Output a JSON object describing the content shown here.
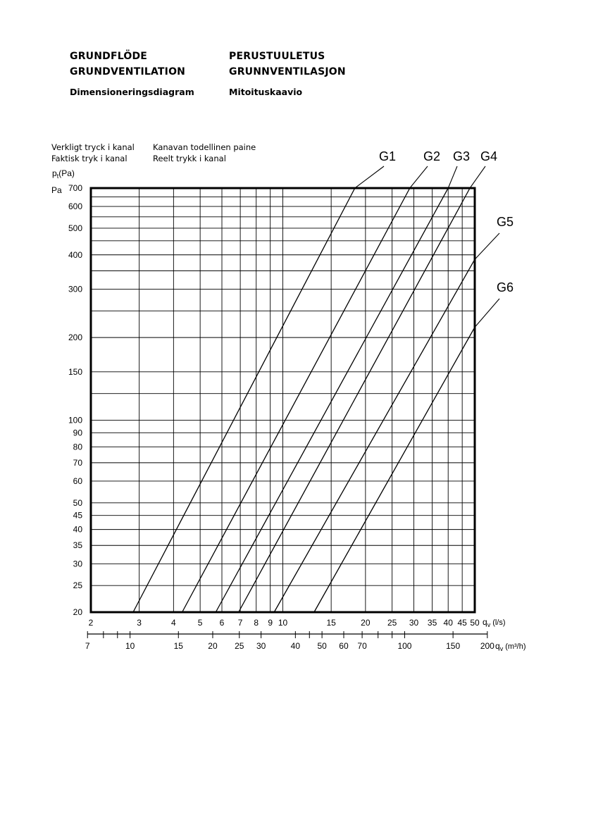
{
  "header": {
    "left_title_1": "GRUNDFLÖDE",
    "left_title_2": "GRUNDVENTILATION",
    "left_subtitle": "Dimensioneringsdiagram",
    "right_title_1": "PERUSTUULETUS",
    "right_title_2": "GRUNNVENTILASJON",
    "right_subtitle": "Mitoituskaavio"
  },
  "axis_notes": {
    "y_desc_sv": "Verkligt tryck i kanal",
    "y_desc_da": "Faktisk tryk i kanal",
    "y_desc_fi": "Kanavan todellinen paine",
    "y_desc_no": "Reelt trykk i kanal",
    "y_symbol": "p",
    "y_symbol_sub": "t",
    "y_symbol_unit": "(Pa)",
    "y_unit": "Pa",
    "x_symbol": "q",
    "x_symbol_sub": "v",
    "x_unit_ls": "(l/s)",
    "x_unit_m3h": "(m³/h)"
  },
  "chart_data": {
    "type": "line",
    "x_scale": "log",
    "y_scale": "log",
    "grid": true,
    "xlim": [
      2,
      50
    ],
    "ylim": [
      20,
      700
    ],
    "x_ticks_ls": [
      2,
      3,
      4,
      5,
      6,
      7,
      8,
      9,
      10,
      15,
      20,
      25,
      30,
      35,
      40,
      45,
      50
    ],
    "x_grid_ls": [
      2,
      3,
      4,
      5,
      6,
      7,
      8,
      9,
      10,
      15,
      20,
      25,
      30,
      35,
      40,
      45,
      50
    ],
    "y_ticks": [
      20,
      25,
      30,
      35,
      40,
      45,
      50,
      60,
      70,
      80,
      90,
      100,
      150,
      200,
      300,
      400,
      500,
      600,
      700
    ],
    "y_grid": [
      20,
      25,
      30,
      35,
      40,
      45,
      50,
      60,
      70,
      80,
      90,
      100,
      125,
      150,
      200,
      250,
      300,
      350,
      400,
      450,
      500,
      550,
      600,
      650,
      700
    ],
    "x_ticks_m3h": [
      7,
      10,
      15,
      20,
      25,
      30,
      40,
      50,
      60,
      70,
      100,
      150,
      200
    ],
    "x_minor_m3h": [
      8,
      9,
      45,
      80,
      90
    ],
    "series": [
      {
        "name": "G1",
        "x": [
          2.85,
          18.3
        ],
        "y": [
          20,
          700
        ]
      },
      {
        "name": "G2",
        "x": [
          4.3,
          29.0
        ],
        "y": [
          20,
          700
        ]
      },
      {
        "name": "G3",
        "x": [
          5.7,
          40.0
        ],
        "y": [
          20,
          700
        ]
      },
      {
        "name": "G4",
        "x": [
          6.9,
          48.0
        ],
        "y": [
          20,
          700
        ]
      },
      {
        "name": "G5",
        "x": [
          9.3,
          50.0
        ],
        "y": [
          20,
          385
        ]
      },
      {
        "name": "G6",
        "x": [
          13.0,
          50.0
        ],
        "y": [
          20,
          218
        ]
      }
    ]
  }
}
